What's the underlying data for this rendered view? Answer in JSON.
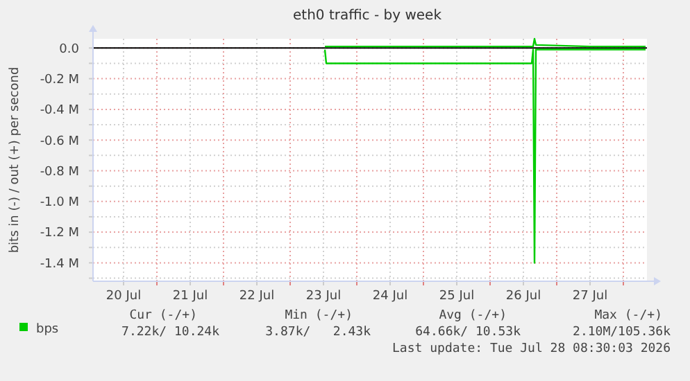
{
  "chart_data": {
    "type": "line",
    "title": "eth0 traffic - by week",
    "ylabel": "bits in (-) / out (+) per second",
    "xlim": [
      "2026-07-20T01:00",
      "2026-07-28T08:30"
    ],
    "xticks": [
      {
        "value": "2026-07-20T12:00",
        "label": "20 Jul"
      },
      {
        "value": "2026-07-21T00:00",
        "label": null
      },
      {
        "value": "2026-07-21T12:00",
        "label": "21 Jul"
      },
      {
        "value": "2026-07-22T00:00",
        "label": null
      },
      {
        "value": "2026-07-22T12:00",
        "label": "22 Jul"
      },
      {
        "value": "2026-07-23T00:00",
        "label": null
      },
      {
        "value": "2026-07-23T12:00",
        "label": "23 Jul"
      },
      {
        "value": "2026-07-24T00:00",
        "label": null
      },
      {
        "value": "2026-07-24T12:00",
        "label": "24 Jul"
      },
      {
        "value": "2026-07-25T00:00",
        "label": null
      },
      {
        "value": "2026-07-25T12:00",
        "label": "25 Jul"
      },
      {
        "value": "2026-07-26T00:00",
        "label": null
      },
      {
        "value": "2026-07-26T12:00",
        "label": "26 Jul"
      },
      {
        "value": "2026-07-27T00:00",
        "label": null
      },
      {
        "value": "2026-07-27T12:00",
        "label": "27 Jul"
      },
      {
        "value": "2026-07-28T00:00",
        "label": null
      }
    ],
    "ylim": [
      -1.52,
      0.06
    ],
    "yticks": [
      {
        "value": 0,
        "label": "0.0"
      },
      {
        "value": -0.1,
        "label": null
      },
      {
        "value": -0.2,
        "label": "-0.2 M"
      },
      {
        "value": -0.3,
        "label": null
      },
      {
        "value": -0.4,
        "label": "-0.4 M"
      },
      {
        "value": -0.5,
        "label": null
      },
      {
        "value": -0.6,
        "label": "-0.6 M"
      },
      {
        "value": -0.7,
        "label": null
      },
      {
        "value": -0.8,
        "label": "-0.8 M"
      },
      {
        "value": -0.9,
        "label": null
      },
      {
        "value": -1.0,
        "label": "-1.0 M"
      },
      {
        "value": -1.1,
        "label": null
      },
      {
        "value": -1.2,
        "label": "-1.2 M"
      },
      {
        "value": -1.3,
        "label": null
      },
      {
        "value": -1.4,
        "label": "-1.4 M"
      },
      {
        "value": -1.5,
        "label": null
      }
    ],
    "grid": true,
    "legend": "bottom",
    "marker": "none",
    "line_style": "solid",
    "ref_lines": [
      {
        "axis": "y",
        "value": 0,
        "color": "#000000"
      }
    ],
    "series": [
      {
        "color": "#00cc00",
        "x": [
          "2026-07-23T12:30",
          "2026-07-23T13:00",
          "2026-07-26T15:00",
          "2026-07-26T15:30",
          "2026-07-26T16:00",
          "2026-07-26T16:30",
          "2026-07-28T08:00"
        ],
        "values": [
          -0.01,
          -0.1,
          -0.1,
          -0.01,
          -1.4,
          -0.01,
          -0.01
        ]
      },
      {
        "name": "bps",
        "color": "#00cc00",
        "x": [
          "2026-07-23T12:30",
          "2026-07-24T12:00",
          "2026-07-26T15:30",
          "2026-07-26T16:00",
          "2026-07-26T16:30",
          "2026-07-27T12:00",
          "2026-07-28T08:00"
        ],
        "values": [
          0.01,
          0.01,
          0.01,
          0.06,
          0.02,
          0.01,
          0.01
        ]
      }
    ],
    "annotations": [
      "Cur (-/+)",
      "Min (-/+)",
      "Avg (-/+)",
      "Max (-/+)",
      "7.22k/ 10.24k",
      "3.87k/   2.43k",
      "64.66k/ 10.53k",
      "2.10M/105.36k",
      "Last update: Tue Jul 28 08:30:03 2026"
    ]
  }
}
